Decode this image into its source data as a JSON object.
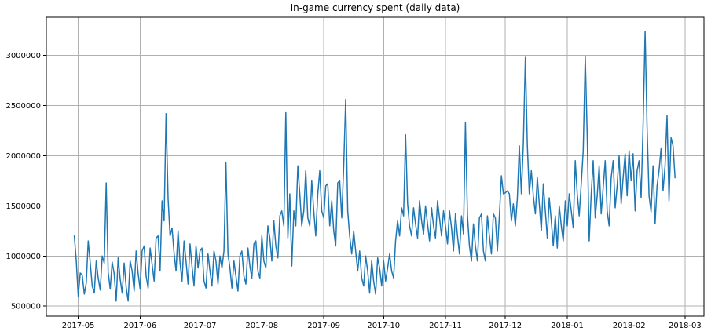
{
  "chart_data": {
    "type": "line",
    "title": "In-game currency spent (daily data)",
    "series_name": "in-game-currency-spent-daily",
    "x_start_date": "2017-04-29",
    "x_tick_labels": [
      {
        "label": "2017-05",
        "day": 2
      },
      {
        "label": "2017-06",
        "day": 33
      },
      {
        "label": "2017-07",
        "day": 63
      },
      {
        "label": "2017-08",
        "day": 94
      },
      {
        "label": "2017-09",
        "day": 125
      },
      {
        "label": "2017-10",
        "day": 155
      },
      {
        "label": "2017-11",
        "day": 186
      },
      {
        "label": "2017-12",
        "day": 216
      },
      {
        "label": "2018-01",
        "day": 247
      },
      {
        "label": "2018-02",
        "day": 278
      },
      {
        "label": "2018-03",
        "day": 306
      }
    ],
    "y_ticks": [
      500000,
      1000000,
      1500000,
      2000000,
      2500000,
      3000000
    ],
    "ylim": [
      400000,
      3380000
    ],
    "xlim_days": [
      -14,
      315.5
    ],
    "grid": true,
    "legend": "none",
    "line_color": "#1f77b4",
    "grid_color": "#b0b0b0",
    "axis_color": "#000000",
    "background_color": "#ffffff",
    "values": [
      1200000,
      950000,
      600000,
      830000,
      810000,
      620000,
      730000,
      1150000,
      930000,
      700000,
      630000,
      950000,
      780000,
      660000,
      1000000,
      930000,
      1730000,
      840000,
      670000,
      940000,
      820000,
      550000,
      980000,
      770000,
      630000,
      930000,
      690000,
      550000,
      950000,
      850000,
      650000,
      1050000,
      830000,
      670000,
      1050000,
      1100000,
      800000,
      680000,
      1080000,
      920000,
      750000,
      1180000,
      1200000,
      850000,
      1550000,
      1350000,
      2420000,
      1570000,
      1200000,
      1280000,
      1030000,
      850000,
      1250000,
      930000,
      750000,
      1150000,
      950000,
      720000,
      1120000,
      900000,
      700000,
      1100000,
      880000,
      1050000,
      1080000,
      750000,
      680000,
      1020000,
      850000,
      700000,
      1050000,
      950000,
      720000,
      1000000,
      880000,
      1050000,
      1930000,
      1020000,
      880000,
      680000,
      950000,
      800000,
      650000,
      1000000,
      1050000,
      800000,
      720000,
      1080000,
      900000,
      780000,
      1120000,
      1150000,
      850000,
      780000,
      1200000,
      950000,
      880000,
      1300000,
      1180000,
      950000,
      1350000,
      1100000,
      980000,
      1400000,
      1450000,
      1300000,
      2430000,
      1180000,
      1620000,
      900000,
      1450000,
      1300000,
      1900000,
      1620000,
      1300000,
      1450000,
      1850000,
      1380000,
      1300000,
      1750000,
      1450000,
      1200000,
      1620000,
      1850000,
      1450000,
      1380000,
      1700000,
      1720000,
      1300000,
      1550000,
      1250000,
      1100000,
      1730000,
      1750000,
      1380000,
      1900000,
      2560000,
      1450000,
      1200000,
      1020000,
      1250000,
      1050000,
      850000,
      1050000,
      780000,
      700000,
      1000000,
      850000,
      630000,
      950000,
      750000,
      620000,
      980000,
      880000,
      700000,
      950000,
      750000,
      880000,
      1020000,
      850000,
      780000,
      1150000,
      1350000,
      1200000,
      1480000,
      1400000,
      2210000,
      1520000,
      1300000,
      1200000,
      1480000,
      1320000,
      1180000,
      1550000,
      1350000,
      1220000,
      1500000,
      1320000,
      1150000,
      1480000,
      1300000,
      1180000,
      1550000,
      1380000,
      1200000,
      1450000,
      1300000,
      1120000,
      1450000,
      1280000,
      1050000,
      1420000,
      1200000,
      1020000,
      1400000,
      1220000,
      2330000,
      1400000,
      1100000,
      950000,
      1320000,
      1100000,
      950000,
      1380000,
      1420000,
      1050000,
      950000,
      1400000,
      1200000,
      1020000,
      1420000,
      1380000,
      1050000,
      1400000,
      1800000,
      1620000,
      1630000,
      1650000,
      1620000,
      1350000,
      1520000,
      1300000,
      1580000,
      2100000,
      1620000,
      2120000,
      2980000,
      2100000,
      1620000,
      1850000,
      1600000,
      1420000,
      1780000,
      1520000,
      1250000,
      1720000,
      1450000,
      1180000,
      1580000,
      1350000,
      1100000,
      1400000,
      1080000,
      1500000,
      1300000,
      1150000,
      1550000,
      1300000,
      1620000,
      1450000,
      1280000,
      1950000,
      1620000,
      1400000,
      1720000,
      2050000,
      2990000,
      2200000,
      1150000,
      1620000,
      1950000,
      1380000,
      1600000,
      1900000,
      1420000,
      1680000,
      1950000,
      1450000,
      1300000,
      1780000,
      1950000,
      1480000,
      1700000,
      2000000,
      1520000,
      1780000,
      2020000,
      1600000,
      2050000,
      1750000,
      2020000,
      1450000,
      1850000,
      1950000,
      1580000,
      2300000,
      3240000,
      2280000,
      1600000,
      1440000,
      1900000,
      1320000,
      1700000,
      1850000,
      2070000,
      1650000,
      1900000,
      2400000,
      1550000,
      2180000,
      2100000,
      1780000
    ]
  }
}
